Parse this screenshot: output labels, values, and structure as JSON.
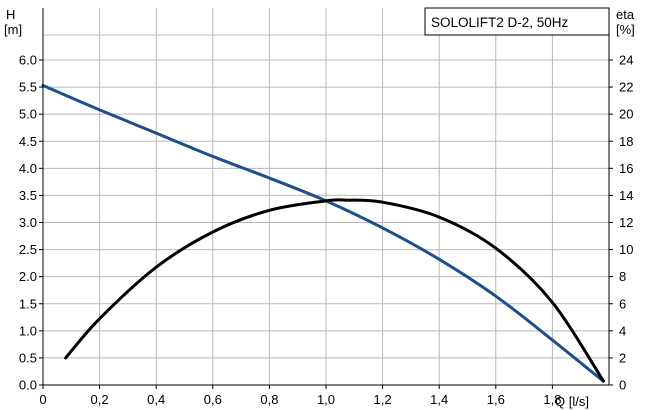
{
  "chart_data": {
    "type": "line",
    "title": "SOLOLIFT2 D-2, 50Hz",
    "xlabel": "Q [l/s]",
    "ylabel_left": {
      "name": "H",
      "unit": "[m]"
    },
    "ylabel_right": {
      "name": "eta",
      "unit": "[%]"
    },
    "xlim": [
      0,
      2.0
    ],
    "ylim_left": [
      0,
      6.0
    ],
    "ylim_right": [
      0,
      24
    ],
    "x_ticks": [
      "0",
      "0,2",
      "0,4",
      "0,6",
      "0,8",
      "1,0",
      "1,2",
      "1,4",
      "1,6",
      "1,8"
    ],
    "y_left_ticks": [
      "0.0",
      "0.5",
      "1.0",
      "1.5",
      "2.0",
      "2.5",
      "3.0",
      "3.5",
      "4.0",
      "4.5",
      "5.0",
      "5.5",
      "6.0"
    ],
    "y_right_ticks": [
      "0",
      "2",
      "4",
      "6",
      "8",
      "10",
      "12",
      "14",
      "16",
      "18",
      "20",
      "22",
      "24"
    ],
    "grid": true,
    "legend_position": "top-right",
    "series": [
      {
        "axis": "left",
        "color": "#1f4e8c",
        "x": [
          0,
          0.2,
          0.4,
          0.6,
          0.8,
          1.0,
          1.2,
          1.4,
          1.6,
          1.8,
          1.98
        ],
        "y": [
          5.53,
          5.08,
          4.65,
          4.22,
          3.82,
          3.4,
          2.9,
          2.32,
          1.64,
          0.83,
          0.07
        ]
      },
      {
        "axis": "right",
        "color": "#000000",
        "x": [
          0.08,
          0.2,
          0.4,
          0.6,
          0.8,
          1.0,
          1.07,
          1.2,
          1.4,
          1.6,
          1.8,
          1.98
        ],
        "y": [
          2.0,
          4.9,
          8.7,
          11.3,
          12.9,
          13.6,
          13.65,
          13.5,
          12.4,
          10.1,
          6.1,
          0.3
        ]
      }
    ]
  }
}
